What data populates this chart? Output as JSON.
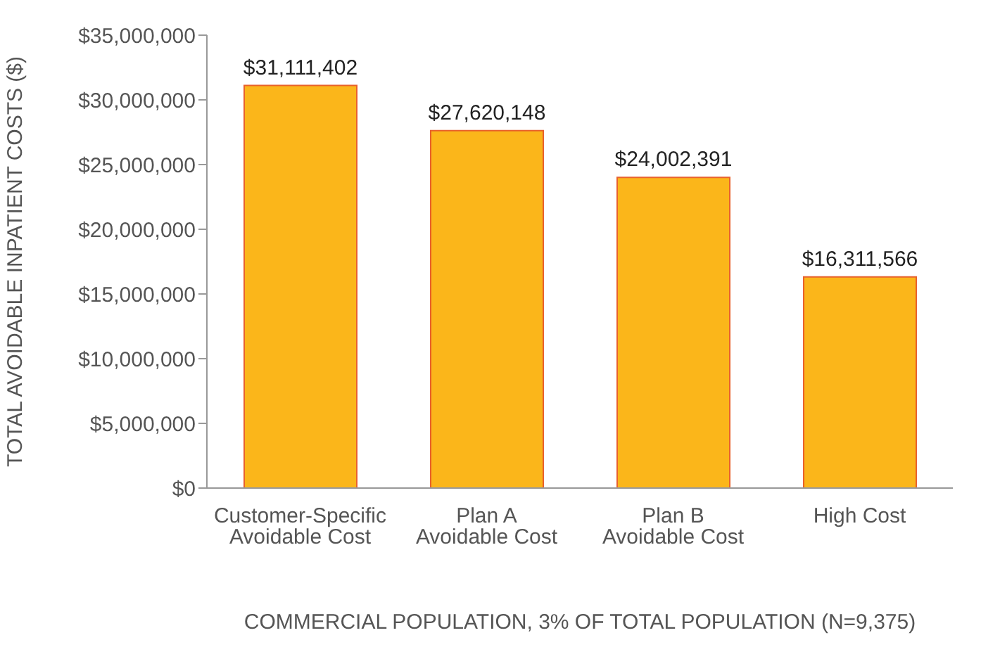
{
  "chart_data": {
    "type": "bar",
    "xlabel": "COMMERCIAL POPULATION, 3% OF TOTAL POPULATION  (N=9,375)",
    "ylabel": "TOTAL AVOIDABLE INPATIENT COSTS ($)",
    "categories": [
      "Customer-Specific Avoidable Cost",
      "Plan A Avoidable Cost",
      "Plan B Avoidable Cost",
      "High Cost"
    ],
    "values": [
      31111402,
      27620148,
      24002391,
      16311566
    ],
    "value_labels": [
      "$31,111,402",
      "$27,620,148",
      "$24,002,391",
      "$16,311,566"
    ],
    "color": "#fbb61a",
    "ylim": [
      0,
      35000000
    ],
    "yticks": [
      {
        "value": 0,
        "label": "$0"
      },
      {
        "value": 5000000,
        "label": "$5,000,000"
      },
      {
        "value": 10000000,
        "label": "$10,000,000"
      },
      {
        "value": 15000000,
        "label": "$15,000,000"
      },
      {
        "value": 20000000,
        "label": "$20,000,000"
      },
      {
        "value": 25000000,
        "label": "$25,000,000"
      },
      {
        "value": 30000000,
        "label": "$30,000,000"
      },
      {
        "value": 35000000,
        "label": "$35,000,000"
      }
    ],
    "grid": false,
    "legend": false
  }
}
